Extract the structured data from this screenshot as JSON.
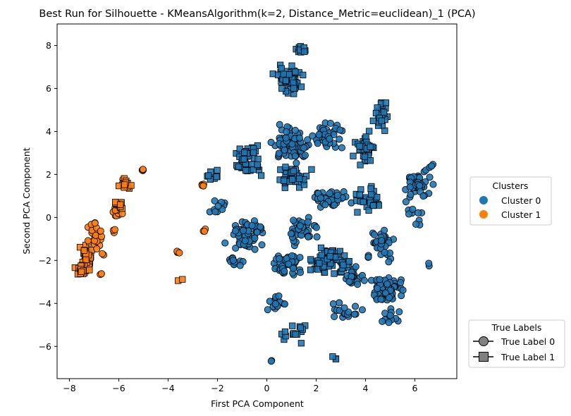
{
  "chart_data": {
    "type": "scatter",
    "title": "Best Run for Silhouette - KMeansAlgorithm(k=2, Distance_Metric=euclidean)_1 (PCA)",
    "xlabel": "First PCA Component",
    "ylabel": "Second PCA Component",
    "xlim": [
      -8.5,
      7.7
    ],
    "ylim": [
      -7.5,
      9.0
    ],
    "xticks": [
      -8,
      -6,
      -4,
      -2,
      0,
      2,
      4,
      6
    ],
    "yticks": [
      -6,
      -4,
      -2,
      0,
      2,
      4,
      6,
      8
    ],
    "grid": false,
    "colors": {
      "cluster0": "#1f77b4",
      "cluster1": "#ff7f0e",
      "marker_edge": "#000000",
      "legend_marker": "#808080"
    },
    "legend_clusters": {
      "title": "Clusters",
      "entries": [
        {
          "label": "Cluster 0",
          "color": "#1f77b4"
        },
        {
          "label": "Cluster 1",
          "color": "#ff7f0e"
        }
      ],
      "placement": "right-center"
    },
    "legend_true_labels": {
      "title": "True Labels",
      "entries": [
        {
          "label": "True Label 0",
          "marker": "circle"
        },
        {
          "label": "True Label 1",
          "marker": "square"
        }
      ],
      "placement": "right-bottom"
    },
    "series": [
      {
        "name": "Cluster 0",
        "color": "#1f77b4",
        "groups": [
          {
            "marker": "square",
            "n": 60,
            "spread": [
              0.45,
              0.55
            ],
            "x": 0.9,
            "y": 6.4
          },
          {
            "marker": "square",
            "n": 10,
            "spread": [
              0.2,
              0.15
            ],
            "x": 1.4,
            "y": 7.8
          },
          {
            "marker": "square",
            "n": 28,
            "spread": [
              0.25,
              0.55
            ],
            "x": 4.6,
            "y": 4.8
          },
          {
            "marker": "square",
            "n": 35,
            "spread": [
              0.35,
              0.6
            ],
            "x": 4.0,
            "y": 3.2
          },
          {
            "marker": "square",
            "n": 45,
            "spread": [
              0.55,
              0.55
            ],
            "x": -0.7,
            "y": 2.6
          },
          {
            "marker": "circle",
            "n": 80,
            "spread": [
              0.6,
              0.65
            ],
            "x": 1.0,
            "y": 3.4
          },
          {
            "marker": "circle",
            "n": 40,
            "spread": [
              0.55,
              0.5
            ],
            "x": 2.4,
            "y": 3.8
          },
          {
            "marker": "square",
            "n": 40,
            "spread": [
              0.6,
              0.5
            ],
            "x": 1.0,
            "y": 1.8
          },
          {
            "marker": "circle",
            "n": 35,
            "spread": [
              0.6,
              0.45
            ],
            "x": 2.6,
            "y": 0.8
          },
          {
            "marker": "circle",
            "n": 55,
            "spread": [
              0.7,
              0.6
            ],
            "x": -0.8,
            "y": -0.8
          },
          {
            "marker": "circle",
            "n": 40,
            "spread": [
              0.5,
              0.55
            ],
            "x": 1.4,
            "y": -0.6
          },
          {
            "marker": "square",
            "n": 60,
            "spread": [
              0.6,
              0.6
            ],
            "x": 2.6,
            "y": -2.0
          },
          {
            "marker": "circle",
            "n": 45,
            "spread": [
              0.55,
              0.55
            ],
            "x": 0.9,
            "y": -2.2
          },
          {
            "marker": "circle",
            "n": 70,
            "spread": [
              0.6,
              0.55
            ],
            "x": 4.9,
            "y": -3.4
          },
          {
            "marker": "circle",
            "n": 45,
            "spread": [
              0.45,
              0.65
            ],
            "x": 6.1,
            "y": 1.6
          },
          {
            "marker": "circle",
            "n": 40,
            "spread": [
              0.5,
              0.6
            ],
            "x": 4.6,
            "y": -1.2
          },
          {
            "marker": "square",
            "n": 30,
            "spread": [
              0.55,
              0.4
            ],
            "x": 4.2,
            "y": 0.8
          },
          {
            "marker": "circle",
            "n": 25,
            "spread": [
              0.4,
              0.55
            ],
            "x": 3.5,
            "y": -2.8
          },
          {
            "marker": "circle",
            "n": 20,
            "spread": [
              0.3,
              0.35
            ],
            "x": 0.4,
            "y": -4.0
          },
          {
            "marker": "square",
            "n": 15,
            "spread": [
              0.5,
              0.4
            ],
            "x": 1.2,
            "y": -5.4
          },
          {
            "marker": "circle",
            "n": 18,
            "spread": [
              0.5,
              0.3
            ],
            "x": 3.3,
            "y": -4.3
          },
          {
            "marker": "circle",
            "n": 12,
            "spread": [
              0.4,
              0.3
            ],
            "x": 5.0,
            "y": -4.6
          },
          {
            "marker": "circle",
            "n": 12,
            "spread": [
              0.3,
              0.25
            ],
            "x": -1.2,
            "y": -2.0
          },
          {
            "marker": "circle",
            "n": 10,
            "spread": [
              0.35,
              0.35
            ],
            "x": -2.0,
            "y": 0.5
          },
          {
            "marker": "square",
            "n": 8,
            "spread": [
              0.35,
              0.25
            ],
            "x": -2.2,
            "y": 2.0
          },
          {
            "marker": "circle",
            "n": 10,
            "spread": [
              0.5,
              0.5
            ],
            "x": 5.8,
            "y": 0.2
          },
          {
            "marker": "circle",
            "n": 3,
            "spread": [
              0.1,
              0.1
            ],
            "x": 6.7,
            "y": 2.4
          },
          {
            "marker": "square",
            "n": 3,
            "spread": [
              0.1,
              0.1
            ],
            "x": 2.8,
            "y": -6.5
          },
          {
            "marker": "circle",
            "n": 2,
            "spread": [
              0.05,
              0.05
            ],
            "x": 0.2,
            "y": -6.7
          },
          {
            "marker": "circle",
            "n": 2,
            "spread": [
              0.1,
              0.1
            ],
            "x": 6.6,
            "y": -2.2
          }
        ]
      },
      {
        "name": "Cluster 1",
        "color": "#ff7f0e",
        "groups": [
          {
            "marker": "square",
            "n": 45,
            "spread": [
              0.2,
              0.55
            ],
            "x": -7.3,
            "y": -1.9
          },
          {
            "marker": "circle",
            "n": 25,
            "spread": [
              0.25,
              0.6
            ],
            "x": -7.0,
            "y": -0.9
          },
          {
            "marker": "square",
            "n": 20,
            "spread": [
              0.2,
              0.25
            ],
            "x": -7.5,
            "y": -2.4
          },
          {
            "marker": "circle",
            "n": 15,
            "spread": [
              0.2,
              0.25
            ],
            "x": -6.1,
            "y": 0.3
          },
          {
            "marker": "square",
            "n": 15,
            "spread": [
              0.2,
              0.25
            ],
            "x": -6.0,
            "y": 0.6
          },
          {
            "marker": "circle",
            "n": 10,
            "spread": [
              0.15,
              0.2
            ],
            "x": -5.8,
            "y": 1.6
          },
          {
            "marker": "square",
            "n": 12,
            "spread": [
              0.2,
              0.2
            ],
            "x": -5.7,
            "y": 1.5
          },
          {
            "marker": "circle",
            "n": 4,
            "spread": [
              0.05,
              0.05
            ],
            "x": -5.0,
            "y": 2.2
          },
          {
            "marker": "circle",
            "n": 5,
            "spread": [
              0.05,
              0.05
            ],
            "x": -2.6,
            "y": 1.5
          },
          {
            "marker": "circle",
            "n": 4,
            "spread": [
              0.05,
              0.05
            ],
            "x": -3.6,
            "y": -1.6
          },
          {
            "marker": "square",
            "n": 2,
            "spread": [
              0.1,
              0.05
            ],
            "x": -3.5,
            "y": -2.9
          },
          {
            "marker": "circle",
            "n": 3,
            "spread": [
              0.1,
              0.1
            ],
            "x": -2.5,
            "y": -0.6
          },
          {
            "marker": "circle",
            "n": 3,
            "spread": [
              0.1,
              0.1
            ],
            "x": -6.2,
            "y": -0.6
          },
          {
            "marker": "circle",
            "n": 2,
            "spread": [
              0.1,
              0.1
            ],
            "x": -6.6,
            "y": -1.7
          },
          {
            "marker": "circle",
            "n": 2,
            "spread": [
              0.1,
              0.1
            ],
            "x": -6.7,
            "y": -2.6
          }
        ]
      }
    ]
  }
}
